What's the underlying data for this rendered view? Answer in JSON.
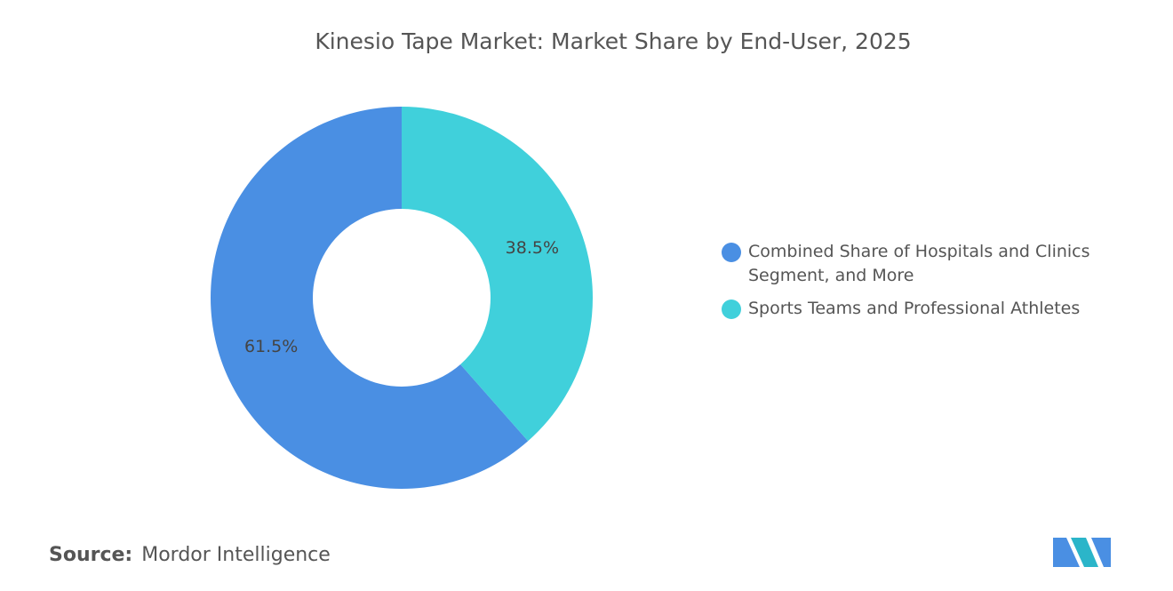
{
  "chart_data": {
    "type": "donut",
    "title": "Kinesio Tape Market: Market Share by End-User, 2025",
    "categories": [
      "Combined Share of Hospitals and Clinics Segment, and More",
      "Sports Teams and Professional Athletes"
    ],
    "values": [
      61.5,
      38.5
    ],
    "value_labels": [
      "61.5%",
      "38.5%"
    ],
    "colors": [
      "#4a8fe3",
      "#40d0db"
    ],
    "legend": "right"
  },
  "footer": {
    "source_label": "Source:",
    "source": "Mordor Intelligence"
  }
}
